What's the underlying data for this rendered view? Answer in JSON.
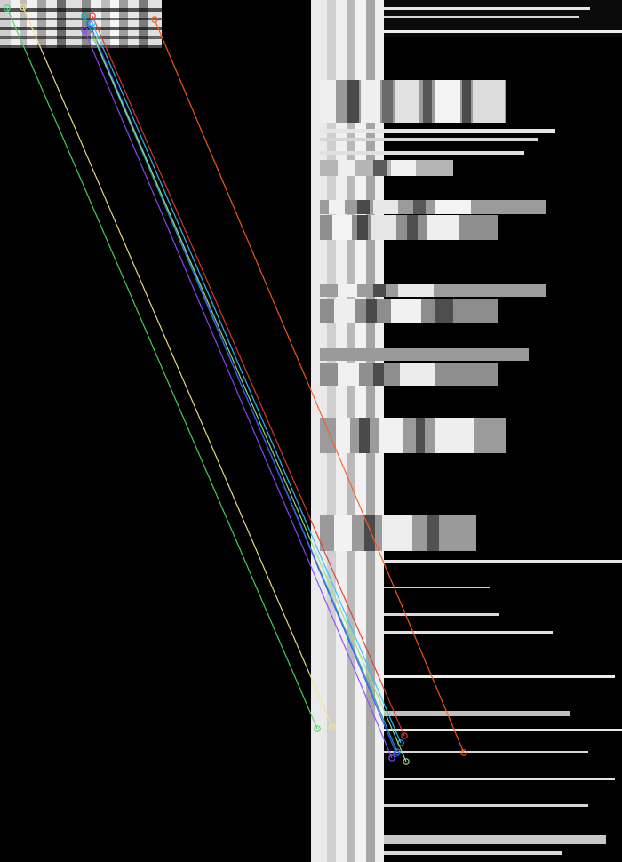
{
  "colors": {
    "background": "#000000",
    "stripe_light": "#e8e8e8",
    "stripe_mid": "#9a9a9a",
    "stripe_dark": "#4a4a4a",
    "match_green": "#4cd964",
    "match_yellow": "#f5e68a",
    "match_orange": "#ff5a1f",
    "match_blue": "#3a55ff",
    "match_teal": "#1fa3a3",
    "match_purple": "#8a4cff",
    "match_lightgreen": "#9be37a",
    "match_red": "#e03c2c",
    "match_cyan": "#35c0ff"
  },
  "matches": [
    {
      "color_key": "match_green"
    },
    {
      "color_key": "match_yellow"
    },
    {
      "color_key": "match_orange"
    },
    {
      "color_key": "match_teal"
    },
    {
      "color_key": "match_blue"
    },
    {
      "color_key": "match_purple"
    },
    {
      "color_key": "match_red"
    },
    {
      "color_key": "match_cyan"
    },
    {
      "color_key": "match_lightgreen"
    }
  ]
}
